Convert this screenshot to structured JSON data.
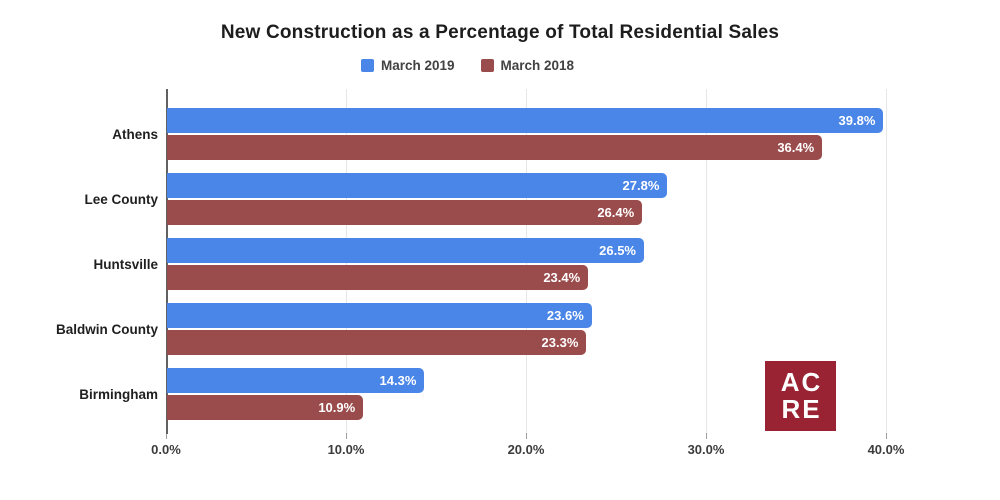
{
  "title": "New Construction as a Percentage of Total Residential Sales",
  "legend": {
    "items": [
      {
        "label": "March 2019",
        "color": "#4a86e8"
      },
      {
        "label": "March 2018",
        "color": "#9a4b4b"
      }
    ]
  },
  "chart_data": {
    "type": "bar",
    "orientation": "horizontal",
    "title": "New Construction as a Percentage of Total Residential Sales",
    "categories": [
      "Athens",
      "Lee County",
      "Huntsville",
      "Baldwin County",
      "Birmingham"
    ],
    "series": [
      {
        "name": "March 2019",
        "color": "#4a86e8",
        "values": [
          39.8,
          27.8,
          26.5,
          23.6,
          14.3
        ]
      },
      {
        "name": "March 2018",
        "color": "#9a4b4b",
        "values": [
          36.4,
          26.4,
          23.4,
          23.3,
          10.9
        ]
      }
    ],
    "data_labels": [
      "39.8%",
      "27.8%",
      "26.5%",
      "23.6%",
      "14.3%",
      "36.4%",
      "26.4%",
      "23.4%",
      "23.3%",
      "10.9%"
    ],
    "value_suffix": "%",
    "xlabel": "",
    "ylabel": "",
    "x_ticks": [
      "0.0%",
      "10.0%",
      "20.0%",
      "30.0%",
      "40.0%"
    ],
    "x_tick_values": [
      0,
      10,
      20,
      30,
      40
    ],
    "xlim": [
      0,
      42
    ],
    "grid": true,
    "legend_position": "top",
    "label_style": "white bold inside right end of bar"
  },
  "logo": {
    "line1": "AC",
    "line2": "RE",
    "background": "#9a2333",
    "text_color": "#ffffff"
  },
  "colors": {
    "background": "#ffffff",
    "axis": "#616161",
    "gridline": "#e7e7e7",
    "title_text": "#1d1d1d",
    "legend_text": "#424242",
    "series_2019": "#4a86e8",
    "series_2018": "#9a4b4b",
    "logo_crimson": "#9a2333"
  }
}
